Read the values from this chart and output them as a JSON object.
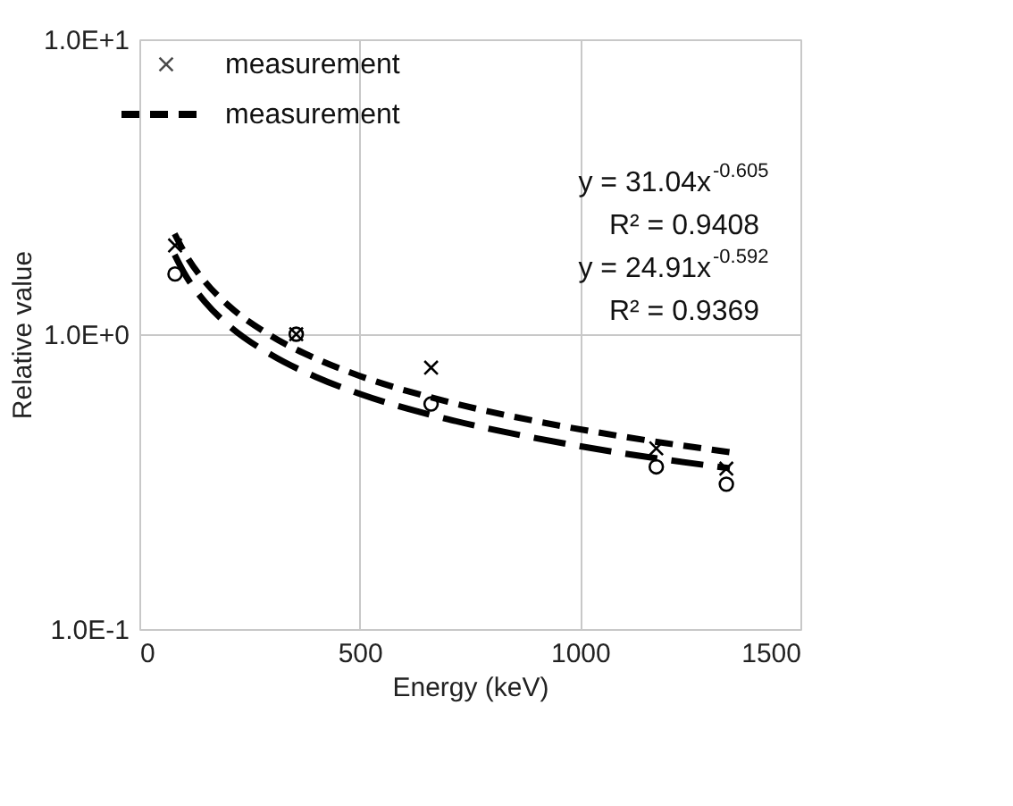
{
  "chart_data": {
    "type": "scatter",
    "xlabel": "Energy (keV)",
    "ylabel": "Relative value",
    "xlim": [
      0,
      1500
    ],
    "xticks": [
      0,
      500,
      1000,
      1500
    ],
    "ylim": [
      0.1,
      10
    ],
    "yticks": [
      {
        "value": 0.1,
        "label": "1.0E-1"
      },
      {
        "value": 1,
        "label": "1.0E+0"
      },
      {
        "value": 10,
        "label": "1.0E+1"
      }
    ],
    "log": "y",
    "grid": true,
    "legend": "top left",
    "series": [
      {
        "name": "measurement",
        "marker": "cross",
        "color": "#000000",
        "x": [
          81,
          356,
          662,
          1173,
          1332
        ],
        "values": [
          2.0,
          1.0,
          0.77,
          0.41,
          0.35
        ]
      },
      {
        "marker": "circle",
        "color": "#000000",
        "x": [
          81,
          356,
          662,
          1173,
          1332
        ],
        "values": [
          1.6,
          1.0,
          0.58,
          0.355,
          0.31
        ]
      },
      {
        "name": "measurement",
        "type": "line",
        "line_style": "dashed",
        "color": "#000000",
        "x": [
          80,
          100,
          150,
          200,
          300,
          400,
          500,
          700,
          900,
          1100,
          1340
        ],
        "values": [
          2.19,
          1.92,
          1.5,
          1.26,
          0.985,
          0.827,
          0.722,
          0.59,
          0.507,
          0.449,
          0.398
        ]
      },
      {
        "type": "line",
        "line_style": "dashed",
        "color": "#000000",
        "x": [
          80,
          100,
          150,
          200,
          300,
          400,
          500,
          700,
          900,
          1100,
          1340
        ],
        "values": [
          1.86,
          1.63,
          1.28,
          1.08,
          0.85,
          0.717,
          0.628,
          0.515,
          0.444,
          0.394,
          0.351
        ]
      }
    ],
    "annotations": [
      "y = 31.04x$^{-0.605}$",
      "R² = 0.9408",
      "y = 24.91x$^{-0.592}$",
      "R² = 0.9369"
    ]
  }
}
